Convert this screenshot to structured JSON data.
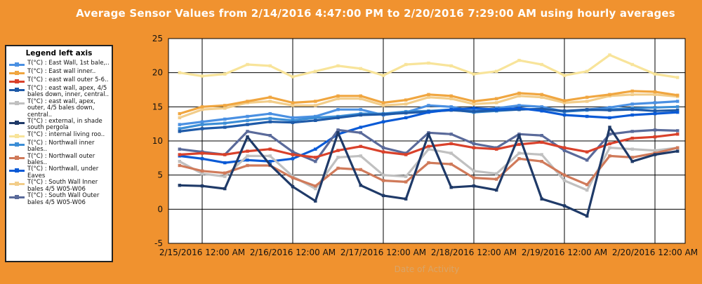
{
  "chart_data": {
    "type": "line",
    "title": "Average Sensor Values from 2/14/2016 4:47:00 PM to 2/20/2016 7:29:00 AM using hourly averages",
    "legend_title": "Legend left axis",
    "legend_placement": "left",
    "xlabel": "Date of Activity",
    "ylabel": "",
    "ylim": [
      -5,
      25
    ],
    "yticks": [
      -5,
      0,
      5,
      10,
      15,
      20,
      25
    ],
    "grid": true,
    "x_tick_labels": [
      "2/15/2016 12:00 AM",
      "2/16/2016 12:00 AM",
      "2/17/2016 12:00 AM",
      "2/18/2016 12:00 AM",
      "2/19/2016 12:00 AM",
      "2/20/2016 12:00 AM"
    ],
    "x": [
      "2/14/2016 6:00 PM",
      "2/15/2016 12:00 AM",
      "2/15/2016 6:00 AM",
      "2/15/2016 12:00 PM",
      "2/15/2016 6:00 PM",
      "2/16/2016 12:00 AM",
      "2/16/2016 6:00 AM",
      "2/16/2016 12:00 PM",
      "2/16/2016 6:00 PM",
      "2/17/2016 12:00 AM",
      "2/17/2016 6:00 AM",
      "2/17/2016 12:00 PM",
      "2/17/2016 6:00 PM",
      "2/18/2016 12:00 AM",
      "2/18/2016 6:00 AM",
      "2/18/2016 12:00 PM",
      "2/18/2016 6:00 PM",
      "2/19/2016 12:00 AM",
      "2/19/2016 6:00 AM",
      "2/19/2016 12:00 PM",
      "2/19/2016 6:00 PM",
      "2/20/2016 12:00 AM",
      "2/20/2016 6:00 AM"
    ],
    "series": [
      {
        "name": "T(°C) : East Wall, 1st bale,..",
        "color": "#4a90e2",
        "values": [
          12.4,
          12.8,
          13.2,
          13.6,
          14.0,
          13.4,
          13.6,
          14.6,
          14.6,
          13.8,
          14.2,
          15.2,
          15.0,
          14.4,
          14.8,
          15.2,
          15.0,
          14.3,
          14.6,
          14.9,
          15.4,
          15.6,
          15.8
        ]
      },
      {
        "name": "T(°C) : East wall inner..",
        "color": "#f0a640",
        "values": [
          14.0,
          15.0,
          15.2,
          15.8,
          16.4,
          15.6,
          15.8,
          16.6,
          16.6,
          15.6,
          16.0,
          16.8,
          16.6,
          15.8,
          16.2,
          17.0,
          16.8,
          15.9,
          16.4,
          16.8,
          17.3,
          17.2,
          16.7
        ]
      },
      {
        "name": "T(°C) : east wall outer 5-6..",
        "color": "#d9412b",
        "values": [
          8.0,
          8.2,
          8.0,
          8.5,
          8.8,
          8.0,
          7.6,
          8.6,
          9.2,
          8.4,
          8.0,
          9.2,
          9.6,
          9.0,
          8.8,
          9.5,
          9.8,
          9.0,
          8.4,
          9.6,
          10.4,
          10.6,
          11.0
        ]
      },
      {
        "name": "T(°C) : east wall, apex, 4/5 bales down, inner, central..",
        "color": "#1e5aa8",
        "values": [
          11.4,
          11.8,
          12.0,
          12.4,
          12.8,
          12.7,
          13.0,
          13.4,
          13.8,
          13.9,
          14.1,
          14.3,
          14.5,
          14.3,
          14.5,
          14.6,
          14.7,
          14.4,
          14.6,
          14.5,
          14.6,
          14.4,
          14.5
        ]
      },
      {
        "name": "T(°C) : east wall, apex, outer, 4/5 bales down, central..",
        "color": "#c0c0c0",
        "values": [
          7.0,
          5.2,
          4.8,
          7.8,
          7.8,
          4.8,
          3.0,
          7.6,
          7.8,
          5.0,
          4.8,
          8.8,
          8.2,
          5.6,
          5.2,
          8.2,
          8.0,
          4.2,
          2.8,
          9.0,
          8.8,
          8.6,
          9.0
        ]
      },
      {
        "name": "T(°C) : external, in shade south pergola",
        "color": "#1f3a68",
        "values": [
          3.5,
          3.4,
          3.0,
          10.6,
          6.5,
          3.3,
          1.2,
          11.2,
          3.5,
          2.0,
          1.5,
          11.0,
          3.2,
          3.4,
          2.8,
          10.8,
          1.5,
          0.5,
          -1.0,
          12.0,
          7.0,
          8.0,
          8.5
        ]
      },
      {
        "name": "T(°C) : internal living roo..",
        "color": "#f8e49a",
        "values": [
          20.0,
          19.5,
          19.8,
          21.2,
          21.0,
          19.4,
          20.2,
          21.0,
          20.6,
          19.6,
          21.2,
          21.4,
          21.0,
          19.8,
          20.2,
          21.8,
          21.2,
          19.6,
          20.2,
          22.6,
          21.2,
          19.8,
          19.3
        ]
      },
      {
        "name": "T(°C) : Northwall inner bales..",
        "color": "#3c8ed6",
        "values": [
          11.8,
          12.4,
          12.6,
          13.0,
          13.3,
          13.0,
          13.4,
          13.6,
          14.0,
          14.0,
          14.3,
          14.4,
          14.6,
          14.2,
          14.4,
          14.6,
          14.7,
          14.3,
          14.5,
          14.6,
          14.8,
          14.9,
          15.0
        ]
      },
      {
        "name": "T(°C) : Northwall outer bales..",
        "color": "#d07a5a",
        "values": [
          6.4,
          5.6,
          5.3,
          6.4,
          6.4,
          4.6,
          3.4,
          6.0,
          5.8,
          4.2,
          4.0,
          6.8,
          6.6,
          4.6,
          4.4,
          7.4,
          7.0,
          5.0,
          3.6,
          7.8,
          7.6,
          8.2,
          9.0
        ]
      },
      {
        "name": "T(°C) : Northwall, under Eaves",
        "color": "#0a5ad6",
        "values": [
          7.8,
          7.4,
          6.8,
          7.2,
          7.0,
          7.4,
          8.8,
          11.0,
          12.0,
          12.8,
          13.4,
          14.2,
          14.6,
          14.8,
          14.6,
          14.8,
          14.4,
          13.8,
          13.6,
          13.4,
          13.8,
          14.0,
          14.2
        ]
      },
      {
        "name": "T(°C) : South Wall Inner bales 4/5 W05-W06",
        "color": "#f2cd8a",
        "values": [
          13.4,
          14.6,
          14.8,
          15.6,
          15.8,
          15.2,
          15.2,
          16.2,
          16.2,
          15.2,
          15.4,
          16.4,
          16.2,
          15.4,
          15.6,
          16.6,
          16.4,
          15.6,
          15.8,
          16.6,
          16.8,
          16.8,
          16.5
        ]
      },
      {
        "name": "T(°C) : South Wall Outer bales 4/5 W05-W06",
        "color": "#5a6a9a",
        "values": [
          8.8,
          8.4,
          8.0,
          11.4,
          10.8,
          8.4,
          7.0,
          11.6,
          11.2,
          9.0,
          8.2,
          11.2,
          11.0,
          9.6,
          9.0,
          11.0,
          10.8,
          8.6,
          7.2,
          11.0,
          11.4,
          11.6,
          11.5
        ]
      }
    ]
  }
}
